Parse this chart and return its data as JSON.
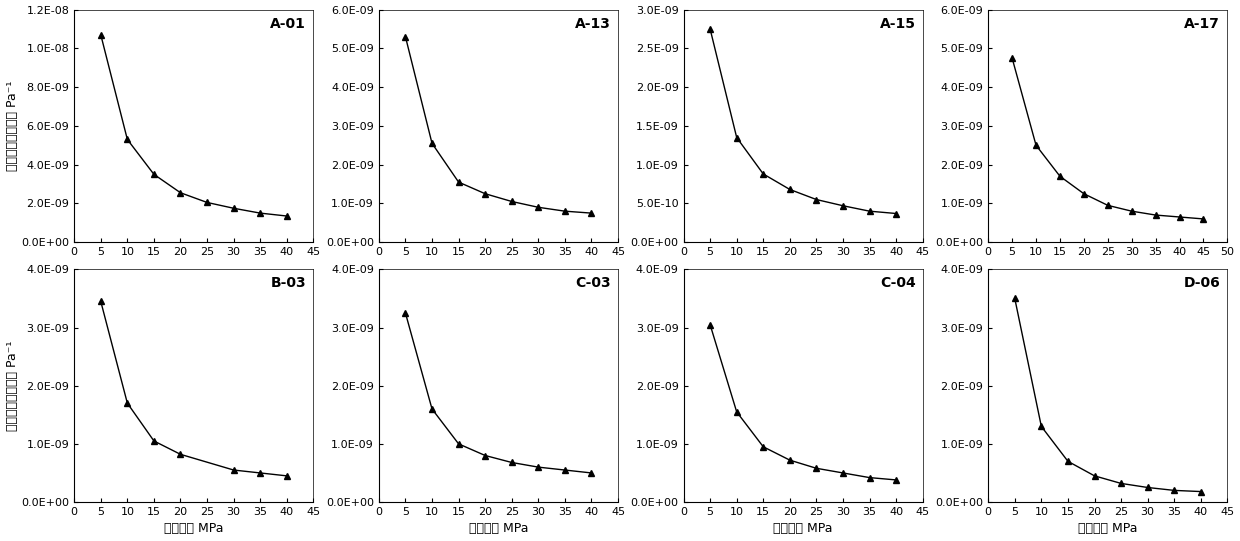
{
  "subplots": [
    {
      "label": "A-01",
      "x": [
        5,
        10,
        15,
        20,
        25,
        30,
        35,
        40
      ],
      "y": [
        1.07e-08,
        5.3e-09,
        3.5e-09,
        2.55e-09,
        2.05e-09,
        1.75e-09,
        1.5e-09,
        1.35e-09
      ],
      "ylim": [
        0,
        1.2e-08
      ],
      "yticks": [
        0,
        2e-09,
        4e-09,
        6e-09,
        8e-09,
        1e-08,
        1.2e-08
      ],
      "ytick_labels": [
        "0.0E+00",
        "2.0E-09",
        "4.0E-09",
        "6.0E-09",
        "8.0E-09",
        "1.0E-08",
        "1.2E-08"
      ],
      "xlim": [
        0,
        45
      ],
      "xticks": [
        0,
        5,
        10,
        15,
        20,
        25,
        30,
        35,
        40,
        45
      ]
    },
    {
      "label": "A-13",
      "x": [
        5,
        10,
        15,
        20,
        25,
        30,
        35,
        40
      ],
      "y": [
        5.3e-09,
        2.55e-09,
        1.55e-09,
        1.25e-09,
        1.05e-09,
        9e-10,
        8e-10,
        7.5e-10
      ],
      "ylim": [
        0,
        6e-09
      ],
      "yticks": [
        0,
        1e-09,
        2e-09,
        3e-09,
        4e-09,
        5e-09,
        6e-09
      ],
      "ytick_labels": [
        "0.0E+00",
        "1.0E-09",
        "2.0E-09",
        "3.0E-09",
        "4.0E-09",
        "5.0E-09",
        "6.0E-09"
      ],
      "xlim": [
        0,
        45
      ],
      "xticks": [
        0,
        5,
        10,
        15,
        20,
        25,
        30,
        35,
        40,
        45
      ]
    },
    {
      "label": "A-15",
      "x": [
        5,
        10,
        15,
        20,
        25,
        30,
        35,
        40
      ],
      "y": [
        2.75e-09,
        1.35e-09,
        8.8e-10,
        6.8e-10,
        5.5e-10,
        4.7e-10,
        4e-10,
        3.7e-10
      ],
      "ylim": [
        0,
        3e-09
      ],
      "yticks": [
        0,
        5e-10,
        1e-09,
        1.5e-09,
        2e-09,
        2.5e-09,
        3e-09
      ],
      "ytick_labels": [
        "0.0E+00",
        "5.0E-10",
        "1.0E-09",
        "1.5E-09",
        "2.0E-09",
        "2.5E-09",
        "3.0E-09"
      ],
      "xlim": [
        0,
        45
      ],
      "xticks": [
        0,
        5,
        10,
        15,
        20,
        25,
        30,
        35,
        40,
        45
      ]
    },
    {
      "label": "A-17",
      "x": [
        5,
        10,
        15,
        20,
        25,
        30,
        35,
        40,
        45
      ],
      "y": [
        4.75e-09,
        2.5e-09,
        1.7e-09,
        1.25e-09,
        9.5e-10,
        8e-10,
        7e-10,
        6.5e-10,
        6e-10
      ],
      "ylim": [
        0,
        6e-09
      ],
      "yticks": [
        0,
        1e-09,
        2e-09,
        3e-09,
        4e-09,
        5e-09,
        6e-09
      ],
      "ytick_labels": [
        "0.0E+00",
        "1.0E-09",
        "2.0E-09",
        "3.0E-09",
        "4.0E-09",
        "5.0E-09",
        "6.0E-09"
      ],
      "xlim": [
        0,
        50
      ],
      "xticks": [
        0,
        5,
        10,
        15,
        20,
        25,
        30,
        35,
        40,
        45,
        50
      ]
    },
    {
      "label": "B-03",
      "x": [
        5,
        10,
        15,
        20,
        30,
        35,
        40
      ],
      "y": [
        3.45e-09,
        1.7e-09,
        1.05e-09,
        8.2e-10,
        5.5e-10,
        5e-10,
        4.5e-10
      ],
      "ylim": [
        0,
        4e-09
      ],
      "yticks": [
        0,
        1e-09,
        2e-09,
        3e-09,
        4e-09
      ],
      "ytick_labels": [
        "0.0E+00",
        "1.0E-09",
        "2.0E-09",
        "3.0E-09",
        "4.0E-09"
      ],
      "xlim": [
        0,
        45
      ],
      "xticks": [
        0,
        5,
        10,
        15,
        20,
        25,
        30,
        35,
        40,
        45
      ]
    },
    {
      "label": "C-03",
      "x": [
        5,
        10,
        15,
        20,
        25,
        30,
        35,
        40
      ],
      "y": [
        3.25e-09,
        1.6e-09,
        1e-09,
        8e-10,
        6.8e-10,
        6e-10,
        5.5e-10,
        5e-10
      ],
      "ylim": [
        0,
        4e-09
      ],
      "yticks": [
        0,
        1e-09,
        2e-09,
        3e-09,
        4e-09
      ],
      "ytick_labels": [
        "0.0E+00",
        "1.0E-09",
        "2.0E-09",
        "3.0E-09",
        "4.0E-09"
      ],
      "xlim": [
        0,
        45
      ],
      "xticks": [
        0,
        5,
        10,
        15,
        20,
        25,
        30,
        35,
        40,
        45
      ]
    },
    {
      "label": "C-04",
      "x": [
        5,
        10,
        15,
        20,
        25,
        30,
        35,
        40
      ],
      "y": [
        3.05e-09,
        1.55e-09,
        9.5e-10,
        7.2e-10,
        5.8e-10,
        5e-10,
        4.2e-10,
        3.8e-10
      ],
      "ylim": [
        0,
        4e-09
      ],
      "yticks": [
        0,
        1e-09,
        2e-09,
        3e-09,
        4e-09
      ],
      "ytick_labels": [
        "0.0E+00",
        "1.0E-09",
        "2.0E-09",
        "3.0E-09",
        "4.0E-09"
      ],
      "xlim": [
        0,
        45
      ],
      "xticks": [
        0,
        5,
        10,
        15,
        20,
        25,
        30,
        35,
        40,
        45
      ]
    },
    {
      "label": "D-06",
      "x": [
        5,
        10,
        15,
        20,
        25,
        30,
        35,
        40
      ],
      "y": [
        3.5e-09,
        1.3e-09,
        7e-10,
        4.5e-10,
        3.2e-10,
        2.5e-10,
        2e-10,
        1.8e-10
      ],
      "ylim": [
        0,
        4e-09
      ],
      "yticks": [
        0,
        1e-09,
        2e-09,
        3e-09,
        4e-09
      ],
      "ytick_labels": [
        "0.0E+00",
        "1.0E-09",
        "2.0E-09",
        "3.0E-09",
        "4.0E-09"
      ],
      "xlim": [
        0,
        45
      ],
      "xticks": [
        0,
        5,
        10,
        15,
        20,
        25,
        30,
        35,
        40,
        45
      ]
    }
  ],
  "ylabel_top": "岩石地层压实系数 Pa⁻¹",
  "ylabel_bottom": "岩石地层压实系数 Pa⁻¹",
  "xlabel": "有效应力 MPa",
  "line_color": "#000000",
  "marker": "^",
  "marker_size": 4,
  "marker_color": "#000000",
  "bg_color": "#ffffff",
  "tick_fontsize": 8,
  "label_fontsize": 9,
  "subplot_label_fontsize": 10
}
